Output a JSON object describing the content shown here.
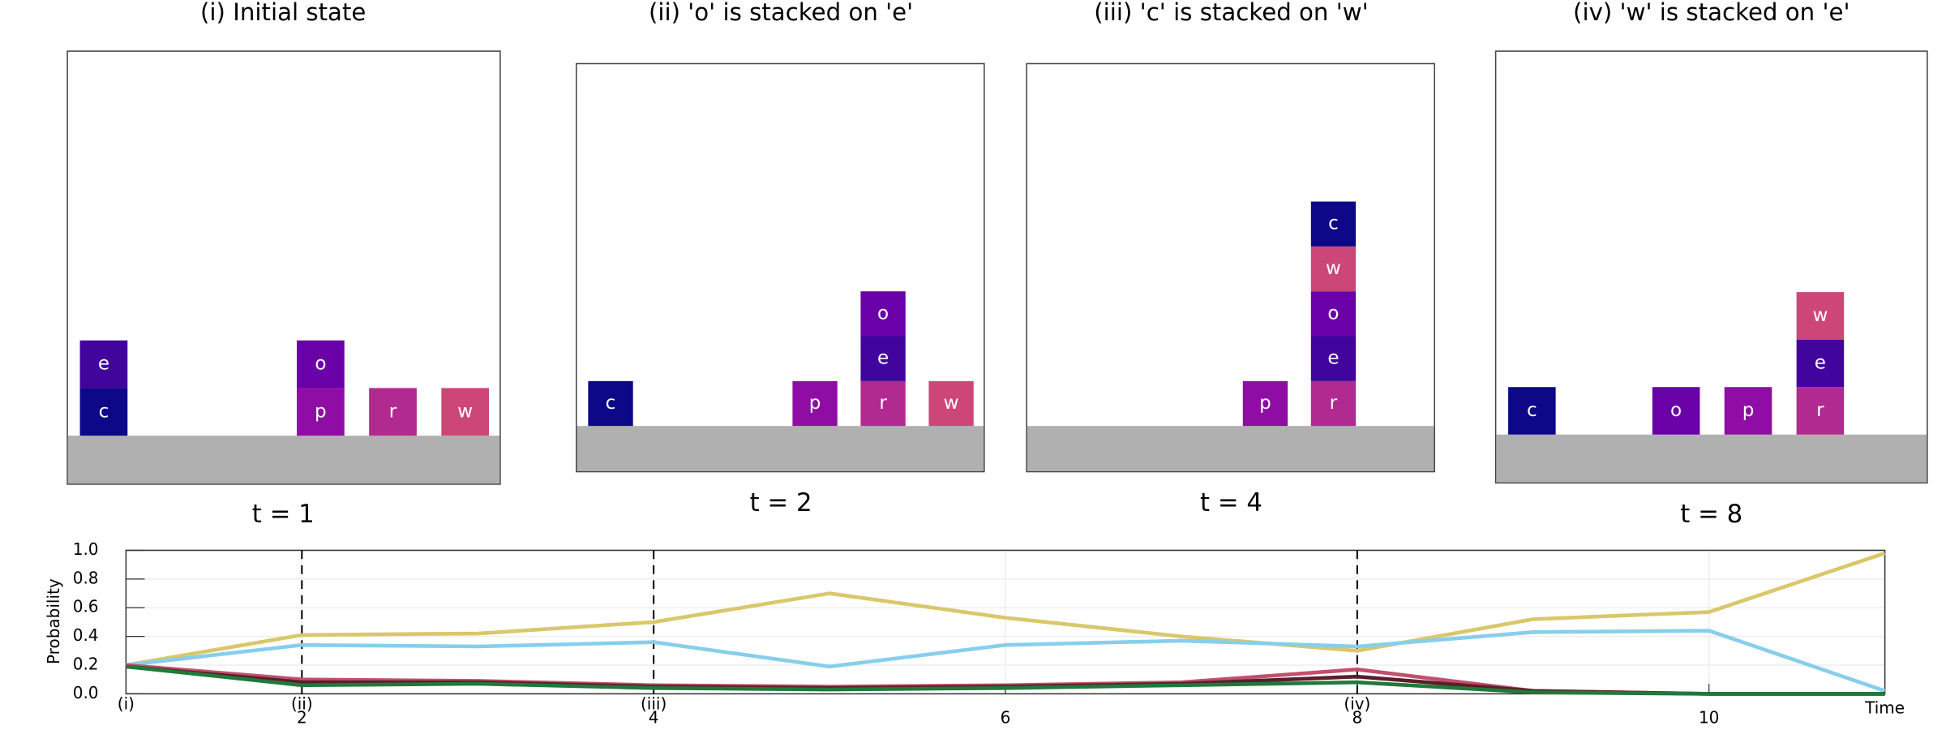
{
  "panels": [
    {
      "title": "(i) Initial state",
      "time_label": "t = 1",
      "columns": [
        [
          "c",
          "e"
        ],
        [],
        [],
        [
          "p",
          "o"
        ],
        [
          "r"
        ],
        [
          "w"
        ]
      ]
    },
    {
      "title": "(ii) 'o' is stacked on 'e'",
      "time_label": "t = 2",
      "columns": [
        [
          "c"
        ],
        [],
        [],
        [
          "p"
        ],
        [
          "r",
          "e",
          "o"
        ],
        [
          "w"
        ]
      ]
    },
    {
      "title": "(iii) 'c' is stacked on 'w'",
      "time_label": "t = 4",
      "columns": [
        [],
        [],
        [],
        [
          "p"
        ],
        [
          "r",
          "e",
          "o",
          "w",
          "c"
        ],
        []
      ]
    },
    {
      "title": "(iv) 'w' is stacked on 'e'",
      "time_label": "t = 8",
      "columns": [
        [
          "c"
        ],
        [],
        [
          "o"
        ],
        [
          "p"
        ],
        [
          "r",
          "e",
          "w"
        ],
        []
      ]
    }
  ],
  "block_colors": {
    "c": "#0d0887",
    "e": "#41049d",
    "o": "#6a00a8",
    "p": "#8f0da4",
    "r": "#b12a90",
    "w": "#cc4778"
  },
  "chart_data": {
    "type": "line",
    "y_label": "Probability",
    "x_label": "Time",
    "x": [
      1,
      2,
      3,
      4,
      5,
      6,
      7,
      8,
      9,
      10,
      11
    ],
    "series": [
      {
        "color": "#d9c76b",
        "values": [
          0.2,
          0.41,
          0.42,
          0.5,
          0.7,
          0.53,
          0.4,
          0.3,
          0.52,
          0.57,
          0.98
        ]
      },
      {
        "color": "#87ceeb",
        "values": [
          0.2,
          0.34,
          0.33,
          0.36,
          0.19,
          0.34,
          0.37,
          0.33,
          0.43,
          0.44,
          0.02
        ]
      },
      {
        "color": "#c0506e",
        "values": [
          0.2,
          0.1,
          0.09,
          0.06,
          0.05,
          0.06,
          0.08,
          0.17,
          0.02,
          0.0,
          0.0
        ]
      },
      {
        "color": "#5a1f2a",
        "values": [
          0.19,
          0.08,
          0.08,
          0.05,
          0.04,
          0.05,
          0.07,
          0.12,
          0.02,
          0.0,
          0.0
        ]
      },
      {
        "color": "#1f7a3a",
        "values": [
          0.19,
          0.06,
          0.07,
          0.04,
          0.03,
          0.04,
          0.06,
          0.08,
          0.01,
          0.0,
          0.0
        ]
      }
    ],
    "xlim": [
      1,
      11
    ],
    "xticks": [
      2,
      4,
      6,
      8,
      10
    ],
    "ylim": [
      0,
      1
    ],
    "yticks": [
      {
        "value": 0,
        "label": "0.0"
      },
      0.2,
      0.4,
      0.6,
      0.8,
      {
        "value": 1,
        "label": "1.0"
      }
    ],
    "markers": [
      {
        "x": 1,
        "label": "(i)"
      },
      {
        "x": 2,
        "label": "(ii)"
      },
      {
        "x": 4,
        "label": "(iii)"
      },
      {
        "x": 8,
        "label": "(iv)"
      }
    ],
    "grid": true
  }
}
